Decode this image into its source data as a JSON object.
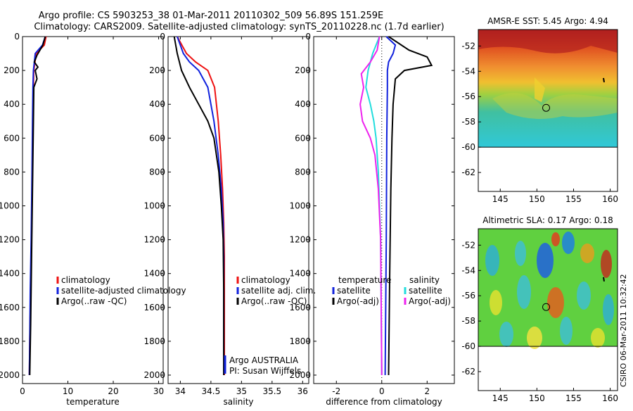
{
  "title_line1": "Argo profile: CS 5903253_38 01-Mar-2011 20110302_509 56.89S 151.259E",
  "title_line2": "Climatology: CARS2009. Satellite-adjusted climatology: synTS_20110228.nc (1.7d earlier)",
  "side_stamp": "CSIRO 06-Mar-2011 10:32:42",
  "colors": {
    "red": "#ee1111",
    "blue": "#1122dd",
    "black": "#000000",
    "cyan": "#22dddd",
    "magenta": "#ee22ee"
  },
  "chart_data": [
    {
      "type": "line",
      "xlabel": "temperature",
      "ylabel": "",
      "xlim": [
        0,
        31
      ],
      "ylim": [
        2050,
        0
      ],
      "xticks": [
        0,
        10,
        20,
        30
      ],
      "yticks": [
        0,
        200,
        400,
        600,
        800,
        1000,
        1200,
        1400,
        1600,
        1800,
        2000
      ],
      "legend": [
        "climatology",
        "satellite-adjusted climatology",
        "Argo(..raw -QC)"
      ],
      "series": [
        {
          "name": "climatology",
          "color": "red",
          "x": [
            5.2,
            4.8,
            3.0,
            2.5,
            2.4,
            2.3,
            2.2,
            2.0,
            1.8,
            1.6,
            1.5
          ],
          "y": [
            0,
            50,
            100,
            200,
            300,
            500,
            800,
            1200,
            1500,
            1800,
            2000
          ]
        },
        {
          "name": "satellite-adjusted climatology",
          "color": "blue",
          "x": [
            5.0,
            4.4,
            2.8,
            2.4,
            2.3,
            2.2,
            2.1,
            1.9,
            1.7,
            1.6,
            1.5
          ],
          "y": [
            0,
            50,
            100,
            200,
            300,
            500,
            800,
            1200,
            1500,
            1800,
            2000
          ]
        },
        {
          "name": "Argo(..raw -QC)",
          "color": "black",
          "x": [
            5.0,
            4.5,
            3.2,
            2.6,
            3.4,
            2.8,
            3.2,
            2.5,
            2.4,
            2.2,
            2.0,
            1.8,
            1.6
          ],
          "y": [
            0,
            50,
            110,
            150,
            180,
            200,
            250,
            300,
            500,
            900,
            1300,
            1700,
            2000
          ]
        }
      ]
    },
    {
      "type": "line",
      "xlabel": "salinity",
      "xlim": [
        33.8,
        36.1
      ],
      "ylim": [
        2050,
        0
      ],
      "xticks": [
        34,
        34.5,
        35,
        35.5,
        36
      ],
      "yticks": [
        0,
        200,
        400,
        600,
        800,
        1000,
        1200,
        1400,
        1600,
        1800,
        2000
      ],
      "legend": [
        "climatology",
        "satellite adj. clim.",
        "Argo(..raw -QC)"
      ],
      "annotation": [
        "Argo AUSTRALIA",
        "PI: Susan Wijffels"
      ],
      "series": [
        {
          "name": "climatology",
          "color": "red",
          "x": [
            33.95,
            34.1,
            34.25,
            34.45,
            34.56,
            34.62,
            34.66,
            34.69,
            34.71,
            34.72,
            34.72,
            34.72
          ],
          "y": [
            0,
            100,
            150,
            200,
            300,
            500,
            700,
            900,
            1100,
            1300,
            1600,
            2000
          ]
        },
        {
          "name": "satellite adj. clim.",
          "color": "blue",
          "x": [
            33.95,
            34.05,
            34.15,
            34.3,
            34.45,
            34.55,
            34.62,
            34.67,
            34.7,
            34.71,
            34.71,
            34.71
          ],
          "y": [
            0,
            100,
            150,
            200,
            300,
            500,
            700,
            900,
            1100,
            1300,
            1600,
            2000
          ]
        },
        {
          "name": "Argo(..raw -QC)",
          "color": "black",
          "x": [
            33.9,
            33.95,
            34.02,
            34.15,
            34.3,
            34.45,
            34.55,
            34.63,
            34.67,
            34.7,
            34.71,
            34.71
          ],
          "y": [
            0,
            100,
            200,
            300,
            400,
            500,
            600,
            800,
            1000,
            1200,
            1500,
            2000
          ]
        }
      ]
    },
    {
      "type": "line",
      "xlabel": "difference from climatology",
      "xlim": [
        -3,
        3.2
      ],
      "ylim": [
        2050,
        0
      ],
      "xticks": [
        -2,
        0,
        2
      ],
      "yticks": [
        0,
        200,
        400,
        600,
        800,
        1000,
        1200,
        1400,
        1600,
        1800,
        2000
      ],
      "legend_headers": [
        "temperature",
        "salinity"
      ],
      "legend": [
        "satellite",
        "Argo(-adj)",
        "satellite",
        "Argo(-adj)"
      ],
      "series": [
        {
          "name": "temperature satellite",
          "color": "blue",
          "x": [
            0.2,
            0.6,
            0.5,
            0.3,
            0.25,
            0.25,
            0.22,
            0.2,
            0.15
          ],
          "y": [
            0,
            50,
            100,
            150,
            200,
            300,
            600,
            1200,
            2000
          ]
        },
        {
          "name": "temperature Argo(-adj)",
          "color": "black",
          "x": [
            0.3,
            1.2,
            2.0,
            2.2,
            1.0,
            0.6,
            0.5,
            0.45,
            0.4,
            0.35,
            0.3
          ],
          "y": [
            0,
            80,
            120,
            170,
            200,
            250,
            400,
            600,
            900,
            1400,
            2000
          ]
        },
        {
          "name": "salinity satellite",
          "color": "cyan",
          "x": [
            -0.1,
            -0.4,
            -0.6,
            -0.7,
            -0.5,
            -0.35,
            -0.25,
            -0.15,
            -0.05,
            0.0
          ],
          "y": [
            0,
            100,
            200,
            300,
            400,
            500,
            600,
            800,
            1200,
            2000
          ]
        },
        {
          "name": "salinity Argo(-adj)",
          "color": "magenta",
          "x": [
            -0.1,
            -0.2,
            -0.5,
            -0.9,
            -0.8,
            -0.95,
            -0.85,
            -0.5,
            -0.3,
            -0.15,
            -0.05,
            0.0
          ],
          "y": [
            0,
            80,
            150,
            220,
            300,
            400,
            500,
            600,
            700,
            900,
            1200,
            2000
          ]
        }
      ]
    },
    {
      "type": "heatmap",
      "title": "AMSR-E SST: 5.45 Argo: 4.94",
      "xlim": [
        142,
        161
      ],
      "ylim": [
        -63.5,
        -50.7
      ],
      "xticks": [
        145,
        150,
        155,
        160
      ],
      "yticks": [
        -52,
        -54,
        -56,
        -58,
        -60,
        -62
      ],
      "data_bottom_lat": -60,
      "marker": {
        "lon": 151.26,
        "lat": -56.89
      }
    },
    {
      "type": "heatmap",
      "title": "Altimetric SLA: 0.17 Argo: 0.18",
      "xlim": [
        142,
        161
      ],
      "ylim": [
        -63.5,
        -50.7
      ],
      "xticks": [
        145,
        150,
        155,
        160
      ],
      "yticks": [
        -52,
        -54,
        -56,
        -58,
        -60,
        -62
      ],
      "data_bottom_lat": -60,
      "marker": {
        "lon": 151.26,
        "lat": -56.89
      }
    }
  ]
}
